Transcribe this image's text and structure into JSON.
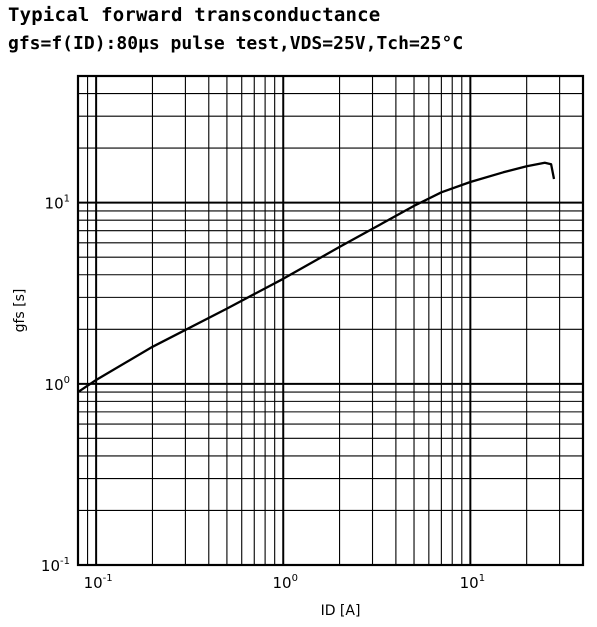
{
  "title": "Typical forward transconductance",
  "subtitle": "gfs=f(ID):80μs pulse test,VDS=25V,Tch=25°C",
  "chart_data": {
    "type": "line",
    "title": "Typical forward transconductance",
    "subtitle": "gfs=f(ID):80μs pulse test,VDS=25V,Tch=25°C",
    "xlabel": "ID [A]",
    "ylabel": "gfs [s]",
    "xscale": "log",
    "yscale": "log",
    "xlim": [
      0.08,
      40
    ],
    "ylim": [
      0.1,
      50
    ],
    "grid": true,
    "x_ticks": [
      {
        "base": "10",
        "exp": "-1",
        "value": 0.1
      },
      {
        "base": "10",
        "exp": "0",
        "value": 1
      },
      {
        "base": "10",
        "exp": "1",
        "value": 10
      }
    ],
    "y_ticks": [
      {
        "base": "10",
        "exp": "-1",
        "value": 0.1
      },
      {
        "base": "10",
        "exp": "0",
        "value": 1
      },
      {
        "base": "10",
        "exp": "1",
        "value": 10
      }
    ],
    "series": [
      {
        "color": "#000000",
        "x": [
          0.08,
          0.1,
          0.2,
          0.5,
          1,
          2,
          5,
          7,
          10,
          15,
          20,
          25,
          27,
          28
        ],
        "y": [
          0.9,
          1.05,
          1.6,
          2.6,
          3.8,
          5.7,
          9.6,
          11.4,
          13.0,
          14.7,
          15.9,
          16.6,
          16.3,
          13.5
        ]
      }
    ]
  }
}
